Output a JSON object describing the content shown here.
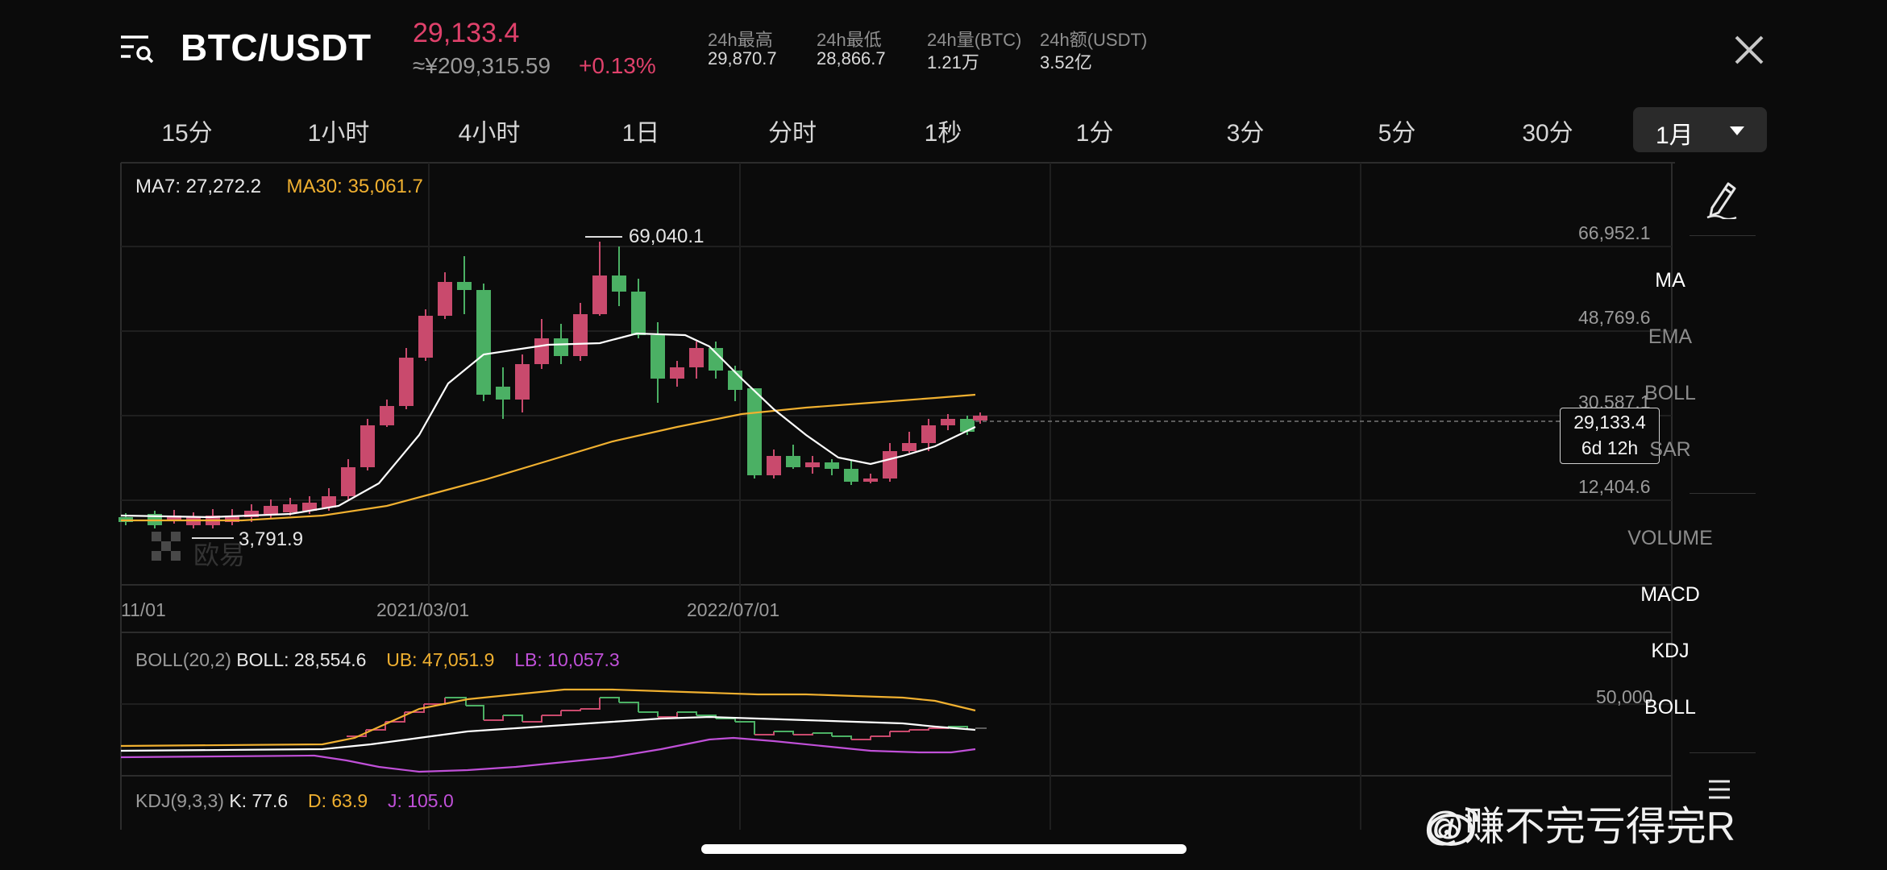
{
  "header": {
    "pair": "BTC/USDT",
    "last_price": "29,133.4",
    "cny_price": "≈¥209,315.59",
    "change_pct": "+0.13%",
    "stats": [
      {
        "label": "24h最高",
        "value": "29,870.7"
      },
      {
        "label": "24h最低",
        "value": "28,866.7"
      },
      {
        "label": "24h量(BTC)",
        "value": "1.21万"
      },
      {
        "label": "24h额(USDT)",
        "value": "3.52亿"
      }
    ]
  },
  "tabs": [
    "15分",
    "1小时",
    "4小时",
    "1日",
    "分时",
    "1秒",
    "1分",
    "3分",
    "5分",
    "30分"
  ],
  "active_interval": "1月",
  "side_toolbar": {
    "main_indicators": [
      "MA",
      "EMA",
      "BOLL",
      "SAR"
    ],
    "sub_indicators": [
      "VOLUME",
      "MACD",
      "KDJ",
      "BOLL"
    ],
    "active_main": "MA",
    "active_sub": [
      "MACD",
      "KDJ",
      "BOLL"
    ]
  },
  "main_chart": {
    "ma7_label": "MA7: 27,272.2",
    "ma30_label": "MA30: 35,061.7",
    "y_ticks": [
      "66,952.1",
      "48,769.6",
      "30,587.1",
      "12,404.6"
    ],
    "x_ticks": [
      "11/01",
      "2021/03/01",
      "2022/07/01"
    ],
    "high_annotation": "69,040.1",
    "low_annotation": "3,791.9",
    "current_price": "29,133.4",
    "countdown": "6d 12h",
    "logo_text": "欧易"
  },
  "boll_panel": {
    "prefix": "BOLL(20,2)",
    "boll": "BOLL: 28,554.6",
    "ub": "UB: 47,051.9",
    "lb": "LB: 10,057.3",
    "y_tick": "50,000"
  },
  "kdj_panel": {
    "prefix": "KDJ(9,3,3)",
    "k": "K: 77.6",
    "d": "D: 63.9",
    "j": "J: 105.0"
  },
  "colors": {
    "up": "#4bb064",
    "down": "#c94a6d",
    "ma7": "#ffffff",
    "ma30": "#f0b030",
    "boll_ub": "#f0b030",
    "boll_lb": "#c050d8",
    "kdj_d": "#f0b030",
    "kdj_j": "#c050d8"
  },
  "watermark": "@赚不完亏得完R",
  "icons": [
    "menu-search-icon",
    "close-icon",
    "pen-icon",
    "chevron-down-icon",
    "weibo-icon",
    "layers-icon"
  ]
}
